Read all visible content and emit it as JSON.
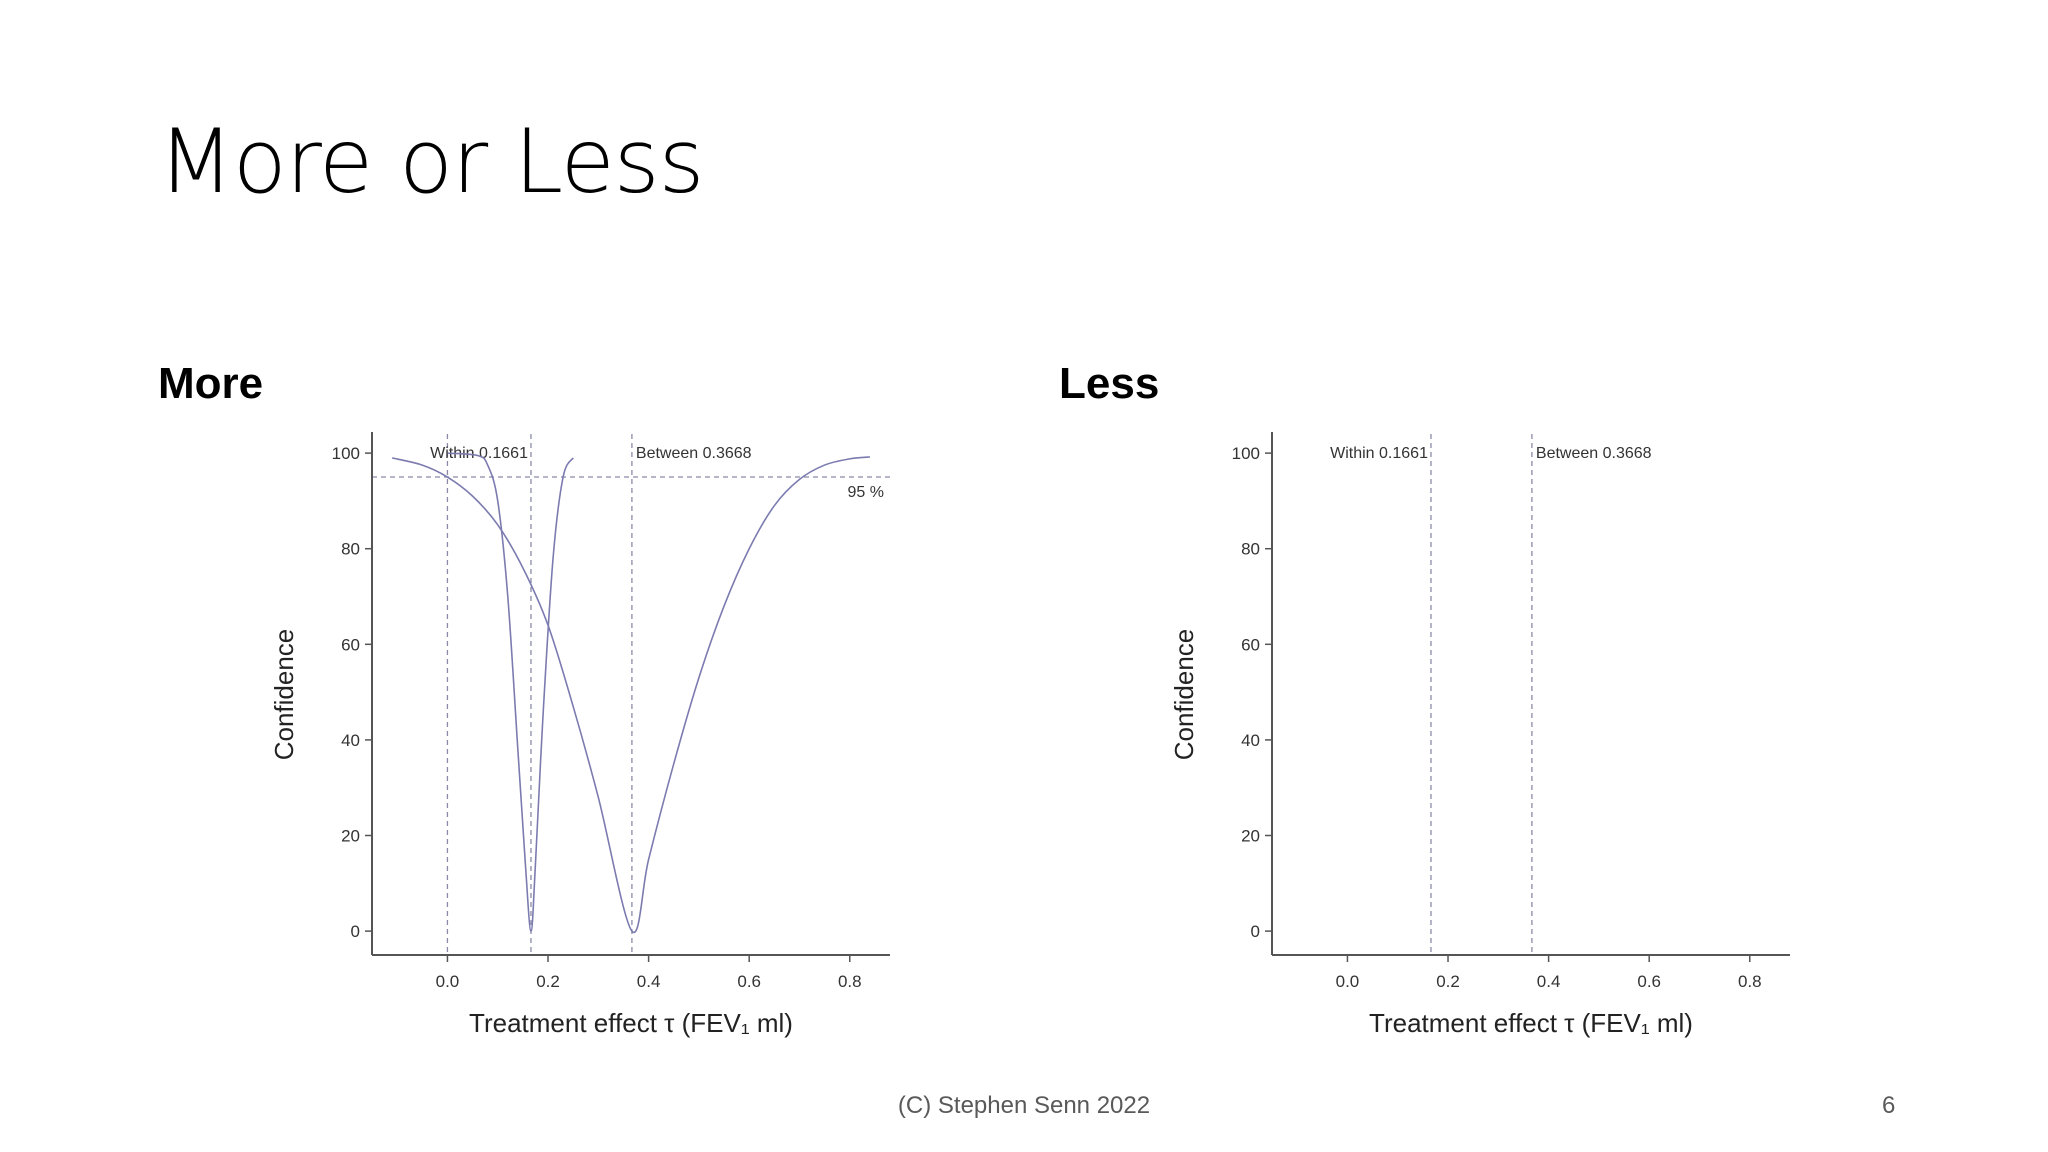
{
  "slide": {
    "title": "More or Less",
    "footer": "(C) Stephen Senn 2022",
    "page_number": "6"
  },
  "panels": [
    {
      "heading": "More"
    },
    {
      "heading": "Less"
    }
  ],
  "chart_data": [
    {
      "type": "line",
      "xlabel": "Treatment effect τ (FEV₁ ml)",
      "ylabel": "Confidence",
      "xlim": [
        -0.15,
        0.88
      ],
      "ylim": [
        -5,
        104
      ],
      "xticks": [
        0.0,
        0.2,
        0.4,
        0.6,
        0.8
      ],
      "xtick_labels": [
        "0.0",
        "0.2",
        "0.4",
        "0.6",
        "0.8"
      ],
      "yticks": [
        0,
        20,
        40,
        60,
        80,
        100
      ],
      "ytick_labels": [
        "0",
        "20",
        "40",
        "60",
        "80",
        "100"
      ],
      "grid": false,
      "reference_lines": [
        {
          "axis": "x",
          "value": 0.0,
          "label": ""
        },
        {
          "axis": "x",
          "value": 0.1661,
          "label": "Within 0.1661"
        },
        {
          "axis": "x",
          "value": 0.3668,
          "label": "Between 0.3668"
        },
        {
          "axis": "y",
          "value": 95,
          "label": "95 %"
        }
      ],
      "series": [
        {
          "color": "#7b7bb0",
          "x": [
            0.0,
            0.06,
            0.08,
            0.1,
            0.12,
            0.14,
            0.155,
            0.1661,
            0.175,
            0.19,
            0.21,
            0.23,
            0.25
          ],
          "y": [
            100,
            99.5,
            97.5,
            90,
            70,
            38,
            14,
            0,
            14,
            45,
            78,
            95,
            99
          ]
        },
        {
          "color": "#7b7bb0",
          "x": [
            -0.11,
            -0.05,
            0.0,
            0.05,
            0.1,
            0.15,
            0.2,
            0.25,
            0.3,
            0.3668,
            0.4,
            0.45,
            0.5,
            0.55,
            0.6,
            0.65,
            0.7,
            0.75,
            0.8,
            0.84
          ],
          "y": [
            99,
            97.5,
            95,
            91,
            85,
            76,
            64,
            47,
            28,
            0,
            15,
            35,
            53,
            68,
            80,
            89,
            94.5,
            97.5,
            98.8,
            99.2
          ]
        }
      ]
    },
    {
      "type": "line",
      "xlabel": "Treatment effect τ (FEV₁ ml)",
      "ylabel": "Confidence",
      "xlim": [
        -0.15,
        0.88
      ],
      "ylim": [
        -5,
        104
      ],
      "xticks": [
        0.0,
        0.2,
        0.4,
        0.6,
        0.8
      ],
      "xtick_labels": [
        "0.0",
        "0.2",
        "0.4",
        "0.6",
        "0.8"
      ],
      "yticks": [
        0,
        20,
        40,
        60,
        80,
        100
      ],
      "ytick_labels": [
        "0",
        "20",
        "40",
        "60",
        "80",
        "100"
      ],
      "grid": false,
      "reference_lines": [
        {
          "axis": "x",
          "value": 0.1661,
          "label": "Within 0.1661"
        },
        {
          "axis": "x",
          "value": 0.3668,
          "label": "Between 0.3668"
        }
      ],
      "series": []
    }
  ]
}
